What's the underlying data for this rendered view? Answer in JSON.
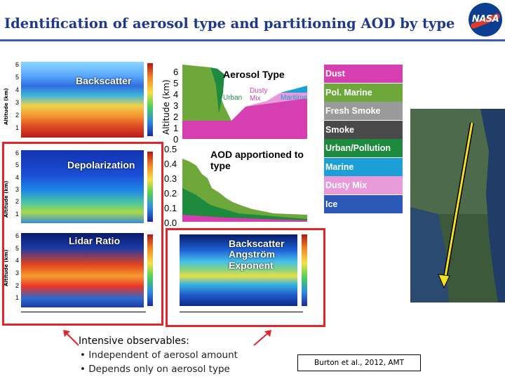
{
  "title": "Identification of aerosol type and partitioning AOD by type",
  "panels": {
    "backscatter": "Backscatter",
    "depolarization": "Depolarization",
    "lidar_ratio": "Lidar Ratio",
    "aerosol_type": "Aerosol Type",
    "aod_apportioned": "AOD apportioned to type",
    "angstrom": "Backscatter Angström Exponent"
  },
  "aerosol_type_inline_labels": {
    "urban": "Urban",
    "dusty_mix": "Dusty Mix",
    "maritime": "Maritime"
  },
  "altitude_label": "Altitude (km)",
  "aerosol_type_axis": {
    "ylabel": "Altitude (km)",
    "ticks": [
      "6",
      "5",
      "4",
      "3",
      "2",
      "1",
      "0"
    ]
  },
  "aod_axis": {
    "ticks": [
      "0.5",
      "0.4",
      "0.3",
      "0.2",
      "0.1",
      "0.0"
    ]
  },
  "left_alt_ticks": [
    "6",
    "5",
    "4",
    "3",
    "2",
    "1"
  ],
  "legend": [
    {
      "label": "Dust",
      "color": "#d63fb0"
    },
    {
      "label": "Pol. Marine",
      "color": "#6fa83a"
    },
    {
      "label": "Fresh Smoke",
      "color": "#9a9a9a"
    },
    {
      "label": "Smoke",
      "color": "#4a4a4a"
    },
    {
      "label": "Urban/Pollution",
      "color": "#1d8a3e"
    },
    {
      "label": "Marine",
      "color": "#1b9fd6"
    },
    {
      "label": "Dusty Mix",
      "color": "#e99ad8"
    },
    {
      "label": "Ice",
      "color": "#2c59b8"
    }
  ],
  "colors": {
    "title": "#1f3a8a",
    "highlight_box": "#e0262a",
    "flight_track": "#f5e21a"
  },
  "intensive": {
    "heading": "Intensive observables:",
    "bullets": [
      "Independent of aerosol amount",
      "Depends only on aerosol type"
    ]
  },
  "citation": "Burton et al., 2012, AMT",
  "logo_text": "NASA"
}
